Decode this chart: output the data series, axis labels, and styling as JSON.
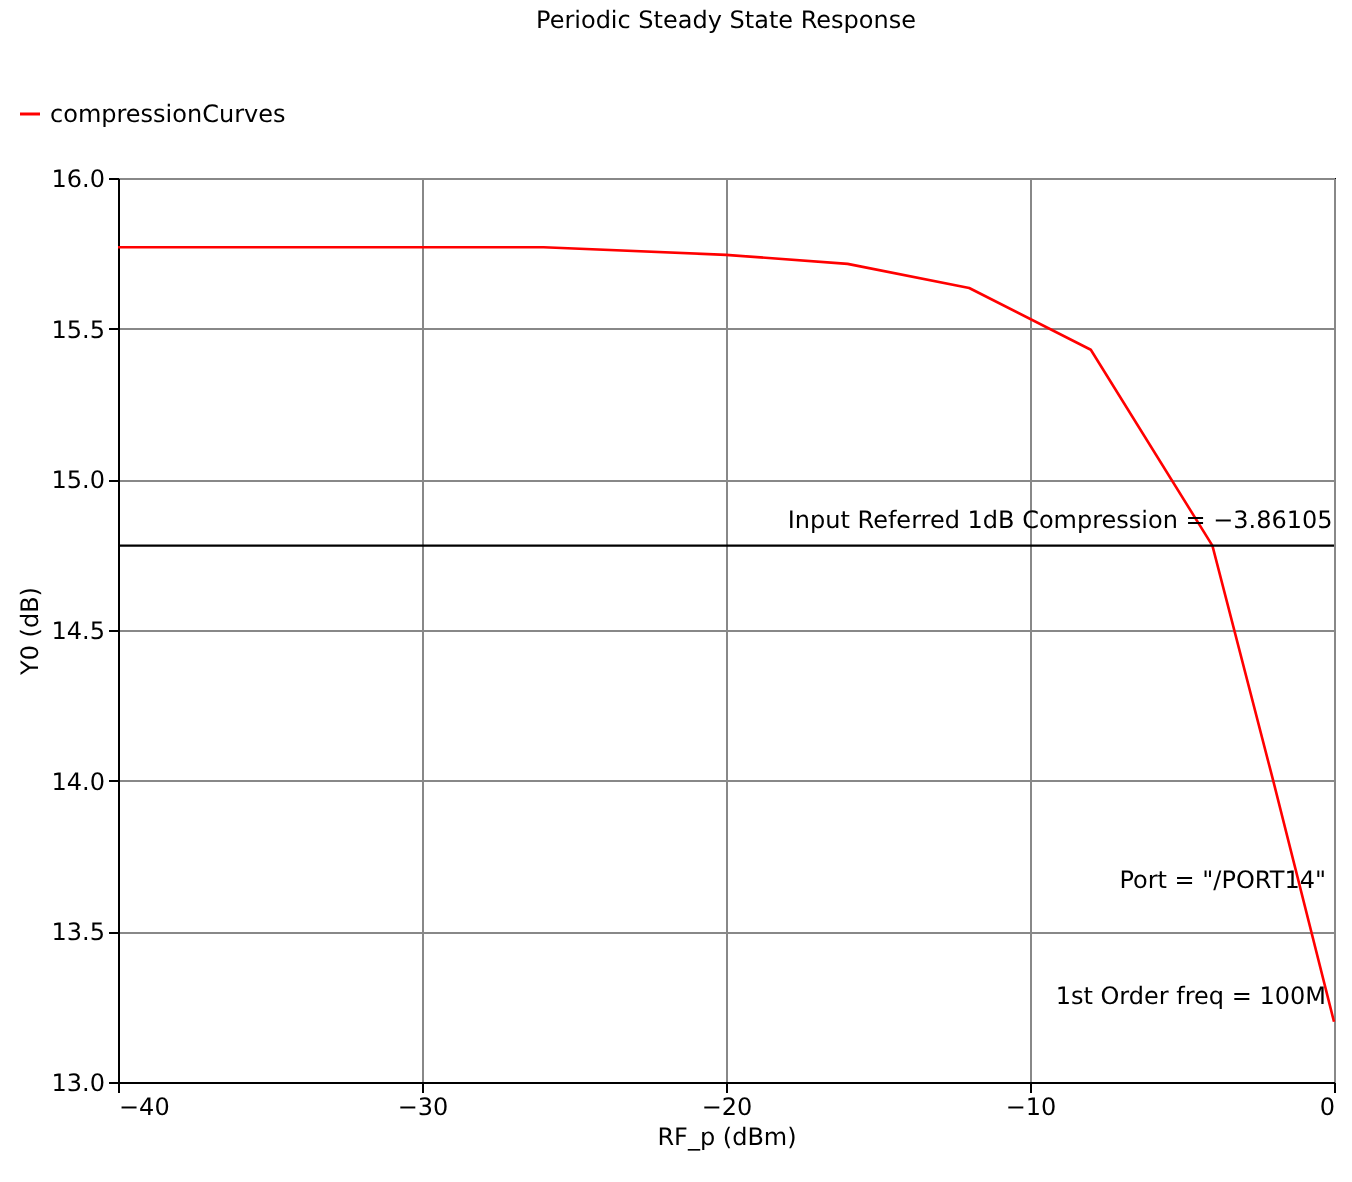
{
  "chart_data": {
    "type": "line",
    "title": "Periodic Steady State Response",
    "xlabel": "RF_p (dBm)",
    "ylabel": "Y0 (dB)",
    "x": [
      -40,
      -30,
      -26,
      -20,
      -16,
      -12,
      -8,
      -4,
      -2,
      0
    ],
    "series": [
      {
        "name": "compressionCurves",
        "color": "#ff0000",
        "values": [
          15.77,
          15.77,
          15.77,
          15.745,
          15.715,
          15.635,
          15.43,
          14.78,
          14.0,
          13.2
        ]
      }
    ],
    "xlim": [
      -40,
      0
    ],
    "xticks": [
      -40,
      -30,
      -20,
      -10,
      0
    ],
    "ylim": [
      13.0,
      16.0
    ],
    "yticks": [
      {
        "value": 13.0,
        "label": "13.0"
      },
      {
        "value": 13.5,
        "label": "13.5"
      },
      {
        "value": 14.0,
        "label": "14.0"
      },
      {
        "value": 14.5,
        "label": "14.5"
      },
      {
        "value": 15.0,
        "label": "15.0"
      },
      {
        "value": 15.5,
        "label": "15.5"
      },
      {
        "value": 16.0,
        "label": "16.0"
      }
    ],
    "ref_lines": [
      {
        "axis": "y",
        "value": 14.78,
        "color": "#000000"
      }
    ],
    "annotations": [
      {
        "text": "Input Referred 1dB Compression = −3.86105",
        "x": -3.86105,
        "y": 14.78
      },
      "Port = \"/PORT14\"",
      "1st Order freq = 100M"
    ],
    "grid": true,
    "legend": "top left",
    "line_style": "solid",
    "marker": "none"
  }
}
